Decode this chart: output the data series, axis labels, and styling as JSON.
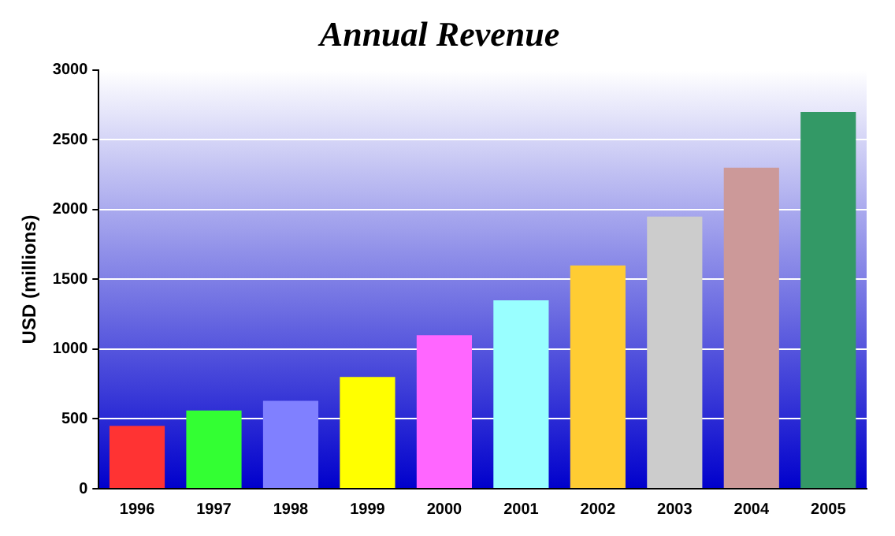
{
  "chart_data": {
    "type": "bar",
    "title": "Annual Revenue",
    "ylabel": "USD (millions)",
    "categories": [
      "1996",
      "1997",
      "1998",
      "1999",
      "2000",
      "2001",
      "2002",
      "2003",
      "2004",
      "2005"
    ],
    "values": [
      450,
      560,
      630,
      800,
      1100,
      1350,
      1600,
      1950,
      2300,
      2700
    ],
    "colors": [
      "#ff3333",
      "#33ff33",
      "#8080ff",
      "#ffff00",
      "#ff66ff",
      "#99ffff",
      "#ffcc33",
      "#cccccc",
      "#cc9999",
      "#339966"
    ],
    "ylim": [
      0,
      3000
    ],
    "yticks": [
      0,
      500,
      1000,
      1500,
      2000,
      2500,
      3000
    ],
    "grid": "y",
    "legend": false
  }
}
